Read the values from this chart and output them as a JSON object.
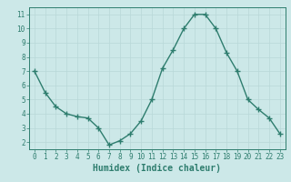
{
  "x": [
    0,
    1,
    2,
    3,
    4,
    5,
    6,
    7,
    8,
    9,
    10,
    11,
    12,
    13,
    14,
    15,
    16,
    17,
    18,
    19,
    20,
    21,
    22,
    23
  ],
  "y": [
    7.0,
    5.5,
    4.5,
    4.0,
    3.8,
    3.7,
    3.0,
    1.8,
    2.1,
    2.6,
    3.5,
    5.0,
    7.2,
    8.5,
    10.0,
    11.0,
    11.0,
    10.0,
    8.3,
    7.0,
    5.0,
    4.3,
    3.7,
    2.6
  ],
  "line_color": "#2e7d6e",
  "marker": "+",
  "markersize": 4,
  "markeredgewidth": 1.0,
  "linewidth": 1.0,
  "xlabel": "Humidex (Indice chaleur)",
  "xlabel_fontsize": 7,
  "bg_color": "#cce8e8",
  "grid_color": "#b8d8d8",
  "xlim": [
    -0.5,
    23.5
  ],
  "ylim": [
    1.5,
    11.5
  ],
  "yticks": [
    2,
    3,
    4,
    5,
    6,
    7,
    8,
    9,
    10,
    11
  ],
  "xticks": [
    0,
    1,
    2,
    3,
    4,
    5,
    6,
    7,
    8,
    9,
    10,
    11,
    12,
    13,
    14,
    15,
    16,
    17,
    18,
    19,
    20,
    21,
    22,
    23
  ],
  "tick_fontsize": 5.5,
  "tick_color": "#2e7d6e",
  "spine_color": "#2e7d6e"
}
